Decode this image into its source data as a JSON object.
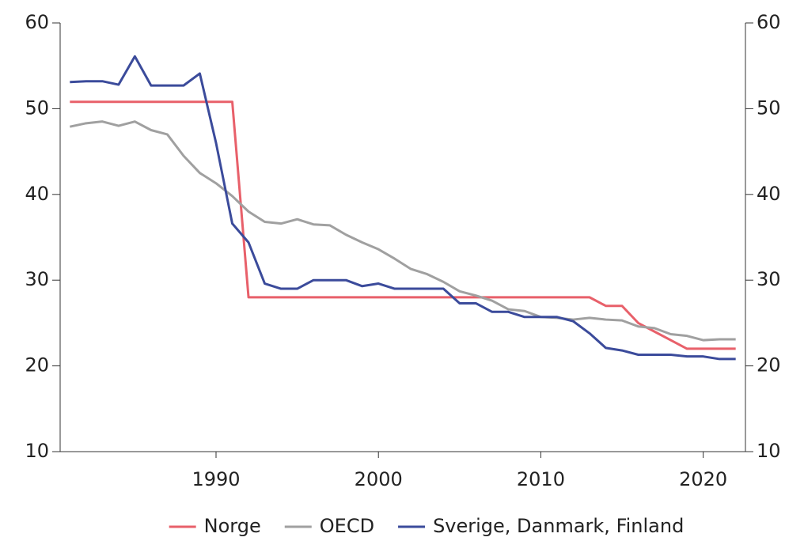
{
  "chart_data": {
    "type": "line",
    "x": [
      1981,
      1982,
      1983,
      1984,
      1985,
      1986,
      1987,
      1988,
      1989,
      1990,
      1991,
      1992,
      1993,
      1994,
      1995,
      1996,
      1997,
      1998,
      1999,
      2000,
      2001,
      2002,
      2003,
      2004,
      2005,
      2006,
      2007,
      2008,
      2009,
      2010,
      2011,
      2012,
      2013,
      2014,
      2015,
      2016,
      2017,
      2018,
      2019,
      2020,
      2021,
      2022
    ],
    "series": [
      {
        "name": "Norge",
        "color": "#e8606a",
        "values": [
          50.8,
          50.8,
          50.8,
          50.8,
          50.8,
          50.8,
          50.8,
          50.8,
          50.8,
          50.8,
          50.8,
          28,
          28,
          28,
          28,
          28,
          28,
          28,
          28,
          28,
          28,
          28,
          28,
          28,
          28,
          28,
          28,
          28,
          28,
          28,
          28,
          28,
          28,
          27,
          27,
          25,
          24,
          23,
          22,
          22,
          22,
          22
        ]
      },
      {
        "name": "OECD",
        "color": "#a0a0a0",
        "values": [
          47.9,
          48.3,
          48.5,
          48.0,
          48.5,
          47.5,
          47.0,
          44.5,
          42.5,
          41.3,
          39.8,
          38.0,
          36.8,
          36.6,
          37.1,
          36.5,
          36.4,
          35.3,
          34.4,
          33.6,
          32.5,
          31.3,
          30.7,
          29.8,
          28.7,
          28.2,
          27.6,
          26.6,
          26.4,
          25.7,
          25.6,
          25.4,
          25.6,
          25.4,
          25.3,
          24.6,
          24.4,
          23.7,
          23.5,
          23.0,
          23.1,
          23.1
        ]
      },
      {
        "name": "Sverige, Danmark, Finland",
        "color": "#3b4b9b",
        "values": [
          53.1,
          53.2,
          53.2,
          52.8,
          56.1,
          52.7,
          52.7,
          52.7,
          54.1,
          46.0,
          36.6,
          34.4,
          29.6,
          29.0,
          29.0,
          30.0,
          30.0,
          30.0,
          29.3,
          29.6,
          29.0,
          29.0,
          29.0,
          29.0,
          27.3,
          27.3,
          26.3,
          26.3,
          25.7,
          25.7,
          25.7,
          25.2,
          23.8,
          22.1,
          21.8,
          21.3,
          21.3,
          21.3,
          21.1,
          21.1,
          20.8,
          20.8
        ]
      }
    ],
    "xlim": [
      1980.4,
      2022.6
    ],
    "xticks": [
      1990,
      2000,
      2010,
      2020
    ],
    "ylim": [
      10,
      60
    ],
    "yticks": [
      10,
      20,
      30,
      40,
      50,
      60
    ],
    "y2lim": [
      10,
      60
    ],
    "y2ticks": [
      10,
      20,
      30,
      40,
      50,
      60
    ],
    "legend": "bottom"
  }
}
